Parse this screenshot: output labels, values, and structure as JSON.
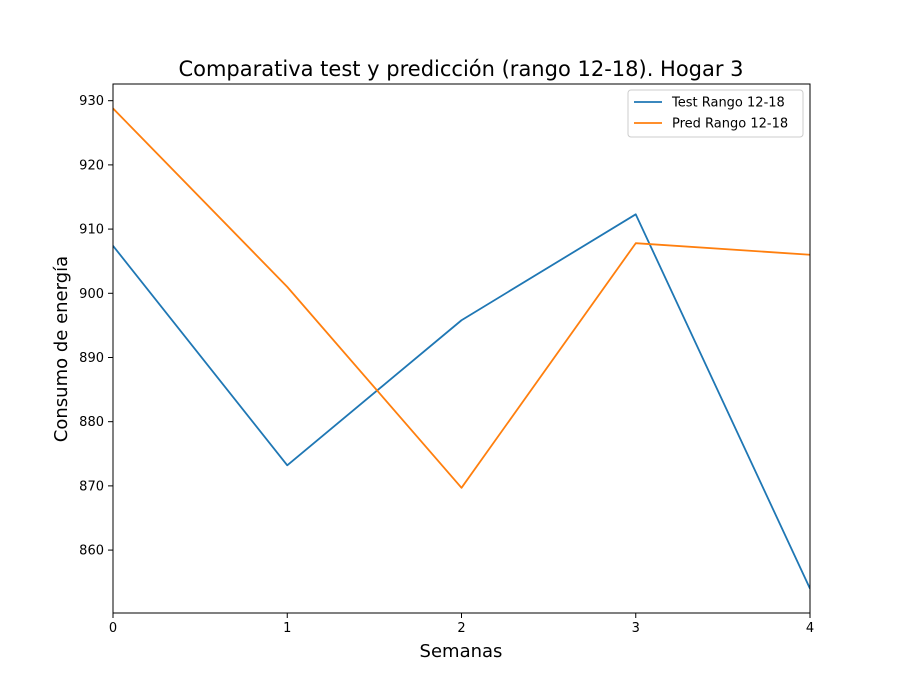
{
  "chart_data": {
    "type": "line",
    "title": "Comparativa test y predicción (rango 12-18). Hogar 3",
    "xlabel": "Semanas",
    "ylabel": "Consumo de energía",
    "x": [
      0,
      1,
      2,
      3,
      4
    ],
    "xlim": [
      0,
      4
    ],
    "ylim": [
      850.2,
      932.6
    ],
    "xticks": [
      "0",
      "1",
      "2",
      "3",
      "4"
    ],
    "yticks": [
      860,
      870,
      880,
      890,
      900,
      910,
      920,
      930
    ],
    "grid": false,
    "legend_position": "top-right",
    "series": [
      {
        "name": "Test Rango 12-18",
        "color": "#1f77b4",
        "values": [
          907.4,
          873.2,
          895.8,
          912.3,
          854.0
        ]
      },
      {
        "name": "Pred Rango 12-18",
        "color": "#ff7f0e",
        "values": [
          928.8,
          901.0,
          869.7,
          907.8,
          906.0
        ]
      }
    ]
  }
}
